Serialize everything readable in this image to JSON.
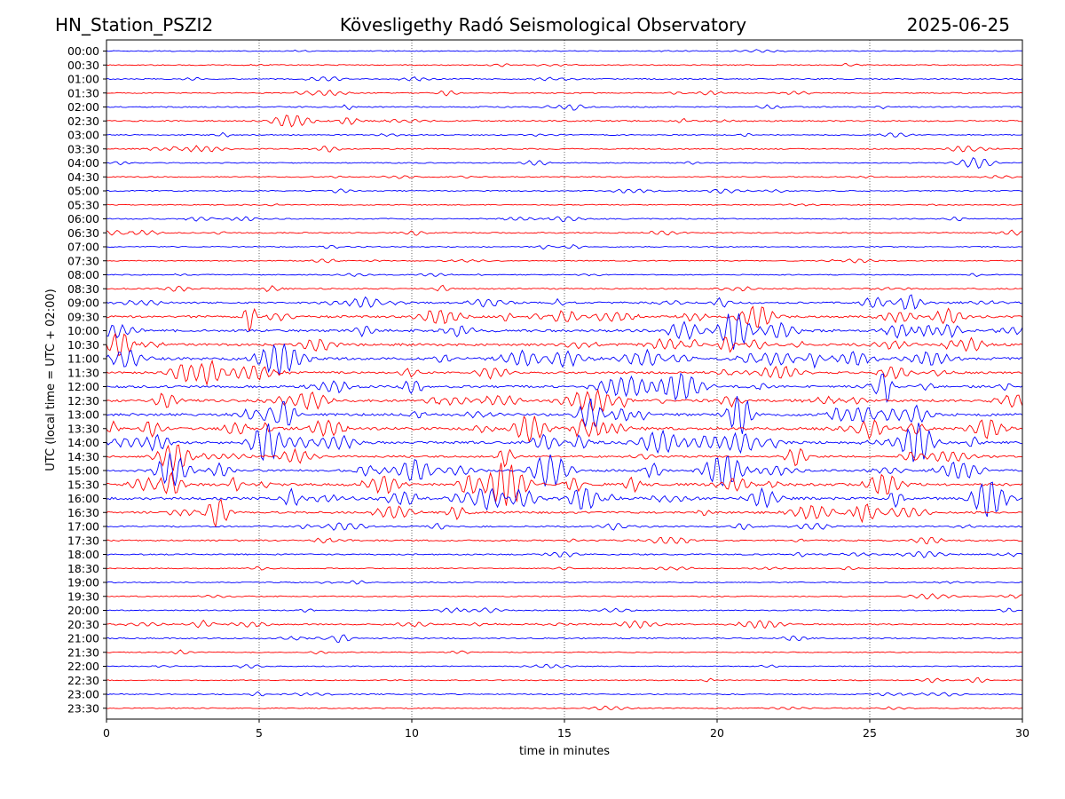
{
  "header": {
    "station": "HN_Station_PSZI2",
    "observatory": "Kövesligethy Radó Seismological Observatory",
    "date": "2025-06-25"
  },
  "chart_data": {
    "type": "line",
    "title": "Kövesligethy Radó Seismological Observatory",
    "xlabel": "time in minutes",
    "ylabel": "UTC (local time = UTC + 02:00)",
    "xlim": [
      0,
      30
    ],
    "x_ticks": [
      "0",
      "5",
      "10",
      "15",
      "20",
      "25",
      "30"
    ],
    "grid": "vertical dotted lines at each 5 minutes",
    "colors": {
      "even_row": "#0000ff",
      "odd_row": "#ff0000",
      "frame": "#000000",
      "grid": "#000000"
    },
    "rows": [
      {
        "label": "00:00",
        "activity": 0.1
      },
      {
        "label": "00:30",
        "activity": 0.12
      },
      {
        "label": "01:00",
        "activity": 0.18
      },
      {
        "label": "01:30",
        "activity": 0.18
      },
      {
        "label": "02:00",
        "activity": 0.25
      },
      {
        "label": "02:30",
        "activity": 0.3
      },
      {
        "label": "03:00",
        "activity": 0.12
      },
      {
        "label": "03:30",
        "activity": 0.22
      },
      {
        "label": "04:00",
        "activity": 0.15
      },
      {
        "label": "04:30",
        "activity": 0.15
      },
      {
        "label": "05:00",
        "activity": 0.15
      },
      {
        "label": "05:30",
        "activity": 0.12
      },
      {
        "label": "06:00",
        "activity": 0.2
      },
      {
        "label": "06:30",
        "activity": 0.22
      },
      {
        "label": "07:00",
        "activity": 0.12
      },
      {
        "label": "07:30",
        "activity": 0.12
      },
      {
        "label": "08:00",
        "activity": 0.12
      },
      {
        "label": "08:30",
        "activity": 0.28
      },
      {
        "label": "09:00",
        "activity": 0.55
      },
      {
        "label": "09:30",
        "activity": 0.75
      },
      {
        "label": "10:00",
        "activity": 0.9
      },
      {
        "label": "10:30",
        "activity": 0.85
      },
      {
        "label": "11:00",
        "activity": 0.9
      },
      {
        "label": "11:30",
        "activity": 0.7
      },
      {
        "label": "12:00",
        "activity": 0.8
      },
      {
        "label": "12:30",
        "activity": 0.85
      },
      {
        "label": "13:00",
        "activity": 0.9
      },
      {
        "label": "13:30",
        "activity": 1.0
      },
      {
        "label": "14:00",
        "activity": 0.95
      },
      {
        "label": "14:30",
        "activity": 0.6
      },
      {
        "label": "15:00",
        "activity": 0.75
      },
      {
        "label": "15:30",
        "activity": 1.0
      },
      {
        "label": "16:00",
        "activity": 0.95
      },
      {
        "label": "16:30",
        "activity": 0.7
      },
      {
        "label": "17:00",
        "activity": 0.35
      },
      {
        "label": "17:30",
        "activity": 0.35
      },
      {
        "label": "18:00",
        "activity": 0.3
      },
      {
        "label": "18:30",
        "activity": 0.12
      },
      {
        "label": "19:00",
        "activity": 0.12
      },
      {
        "label": "19:30",
        "activity": 0.15
      },
      {
        "label": "20:00",
        "activity": 0.18
      },
      {
        "label": "20:30",
        "activity": 0.3
      },
      {
        "label": "21:00",
        "activity": 0.25
      },
      {
        "label": "21:30",
        "activity": 0.1
      },
      {
        "label": "22:00",
        "activity": 0.08
      },
      {
        "label": "22:30",
        "activity": 0.12
      },
      {
        "label": "23:00",
        "activity": 0.12
      },
      {
        "label": "23:30",
        "activity": 0.12
      }
    ]
  }
}
